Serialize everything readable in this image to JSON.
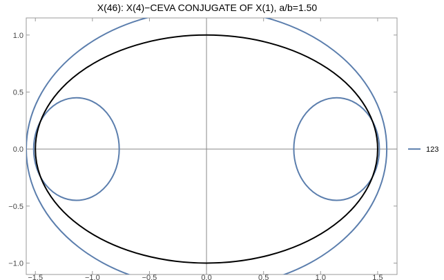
{
  "chart_data": {
    "type": "line",
    "title": "X(46): X(4)−CEVA CONJUGATE OF X(1), a/b=1.50",
    "xlabel": "",
    "ylabel": "",
    "xlim": [
      -1.58,
      1.67
    ],
    "ylim": [
      -1.1,
      1.15
    ],
    "x_ticks": [
      -1.5,
      -1.0,
      -0.5,
      0.0,
      0.5,
      1.0,
      1.5
    ],
    "x_tick_labels": [
      "−1.5",
      "−1.0",
      "−0.5",
      "0.0",
      "0.5",
      "1.0",
      "1.5"
    ],
    "y_ticks": [
      -1.0,
      -0.5,
      0.0,
      0.5,
      1.0
    ],
    "y_tick_labels": [
      "−1.0",
      "−0.5",
      "0.0",
      "0.5",
      "1.0"
    ],
    "grid": false,
    "legend_position": "right",
    "series": [
      {
        "name": "123",
        "color": "#5b7ead",
        "curves": [
          {
            "shape": "ellipse",
            "cx": 0.0,
            "cy": 0.0,
            "rx": 1.58,
            "ry": 1.22
          },
          {
            "shape": "ellipse",
            "cx": -1.14,
            "cy": 0.0,
            "rx": 0.375,
            "ry": 0.45
          },
          {
            "shape": "ellipse",
            "cx": 1.14,
            "cy": 0.0,
            "rx": 0.375,
            "ry": 0.45
          }
        ]
      },
      {
        "name": "",
        "color": "#000000",
        "curves": [
          {
            "shape": "ellipse",
            "cx": 0.0,
            "cy": 0.0,
            "rx": 1.5,
            "ry": 1.0
          }
        ]
      }
    ]
  }
}
